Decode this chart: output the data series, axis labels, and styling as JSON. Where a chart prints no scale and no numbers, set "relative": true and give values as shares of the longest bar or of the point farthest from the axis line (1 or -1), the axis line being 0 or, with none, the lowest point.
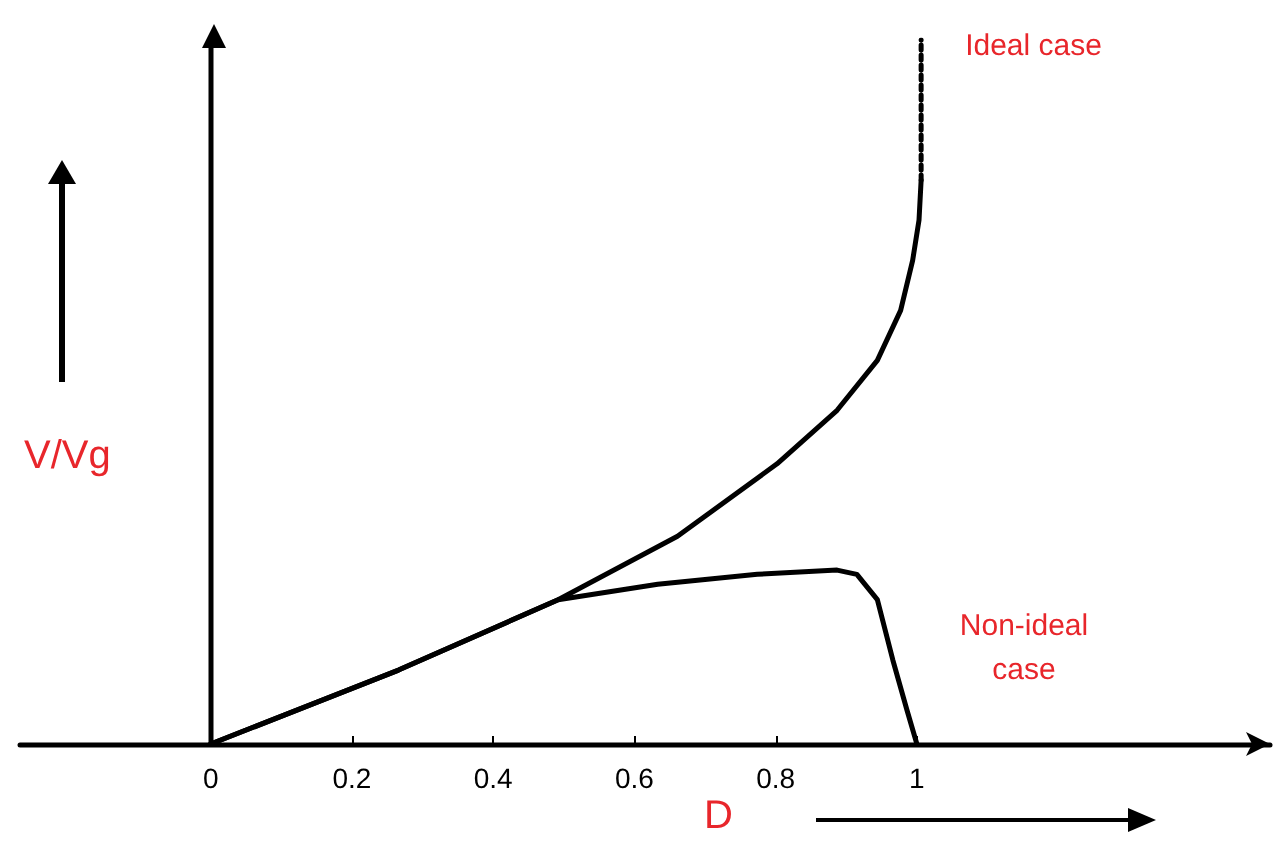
{
  "chart_data": {
    "type": "line",
    "relative": true,
    "xlabel": "D",
    "ylabel": "V/Vg",
    "xlim": [
      -0.27,
      1.5
    ],
    "xticks": [
      0,
      0.2,
      0.4,
      0.6,
      0.8,
      1
    ],
    "marker": "none",
    "series": [
      {
        "color": "#000000",
        "line_style": "solid",
        "x": [
          0,
          0.266,
          0.492,
          0.661,
          0.802,
          0.887,
          0.944,
          0.977,
          0.994,
          1.003,
          1.006
        ],
        "values": [
          0,
          0.105,
          0.205,
          0.295,
          0.398,
          0.474,
          0.545,
          0.616,
          0.687,
          0.744,
          0.801
        ]
      },
      {
        "color": "#000000",
        "line_style": "dotted",
        "x": [
          1.006,
          1.006
        ],
        "values": [
          0.801,
          1
        ]
      },
      {
        "color": "#000000",
        "line_style": "solid",
        "x": [
          0,
          0.266,
          0.492,
          0.633,
          0.774,
          0.887,
          0.915,
          0.944,
          0.966,
          0.986,
          1.0
        ],
        "values": [
          0,
          0.105,
          0.205,
          0.227,
          0.241,
          0.247,
          0.241,
          0.205,
          0.119,
          0.048,
          0
        ]
      }
    ],
    "annotations": [
      {
        "text": "Ideal case",
        "x": 1.006,
        "y": 1
      },
      "Non-ideal case"
    ]
  }
}
